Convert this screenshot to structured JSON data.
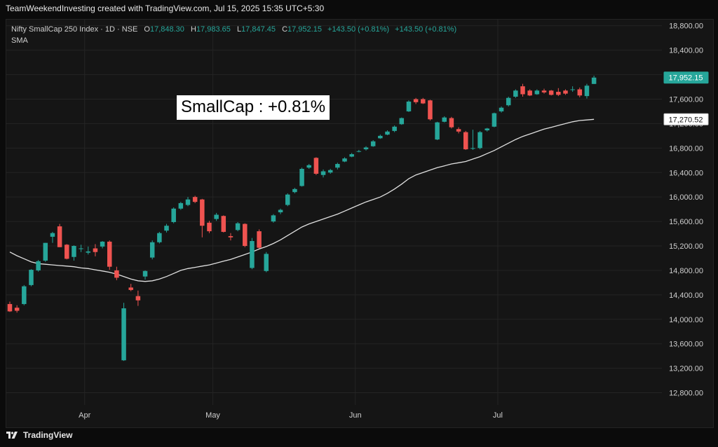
{
  "header": {
    "credit": "TeamWeekendInvesting created with TradingView.com, Jul 15, 2025 15:35 UTC+5:30"
  },
  "legend": {
    "symbol": "Nifty SmallCap 250 Index · 1D · NSE",
    "open_label": "O",
    "open": "17,848.30",
    "high_label": "H",
    "high": "17,983.65",
    "low_label": "L",
    "low": "17,847.45",
    "close_label": "C",
    "close": "17,952.15",
    "change": "+143.50 (+0.81%)",
    "change2": "+143.50 (+0.81%)",
    "indicator": "SMA"
  },
  "annotation": "SmallCap : +0.81%",
  "footer": {
    "brand": "TradingView"
  },
  "colors": {
    "up": "#26a69a",
    "down": "#ef5350",
    "sma": "#e0e0e0",
    "grid": "#242424",
    "axis_text": "#cfcfcf"
  },
  "chart_data": {
    "type": "candlestick",
    "title": "Nifty SmallCap 250 Index · 1D · NSE",
    "ylim": [
      12600,
      18900
    ],
    "y_ticks": [
      "12,800.00",
      "13,200.00",
      "13,600.00",
      "14,000.00",
      "14,400.00",
      "14,800.00",
      "15,200.00",
      "15,600.00",
      "16,000.00",
      "16,400.00",
      "16,800.00",
      "17,200.00",
      "17,600.00",
      "18,000.00",
      "18,400.00",
      "18,800.00"
    ],
    "y_tick_values": [
      12800,
      13200,
      13600,
      14000,
      14400,
      14800,
      15200,
      15600,
      16000,
      16400,
      16800,
      17200,
      17600,
      18000,
      18400,
      18800
    ],
    "x_ticks": [
      {
        "label": "Apr",
        "index": 10.5
      },
      {
        "label": "May",
        "index": 28.5
      },
      {
        "label": "Jun",
        "index": 48.5
      },
      {
        "label": "Jul",
        "index": 68.5
      }
    ],
    "last_price_label": "17,952.15",
    "sma_price_label": "17,270.52",
    "last_price": 17952.15,
    "sma_price": 17270.52,
    "candles": [
      [
        14250,
        14290,
        14120,
        14130
      ],
      [
        14190,
        14230,
        14110,
        14140
      ],
      [
        14250,
        14560,
        14230,
        14540
      ],
      [
        14560,
        14820,
        14540,
        14810
      ],
      [
        14800,
        14970,
        14780,
        14950
      ],
      [
        14960,
        15250,
        14940,
        15250
      ],
      [
        15350,
        15430,
        15250,
        15410
      ],
      [
        15520,
        15560,
        15180,
        15180
      ],
      [
        15220,
        15230,
        14980,
        14990
      ],
      [
        15020,
        15210,
        14960,
        15200
      ],
      [
        15150,
        15220,
        15100,
        15160
      ],
      [
        15090,
        15190,
        15060,
        15110
      ],
      [
        15160,
        15230,
        15030,
        15100
      ],
      [
        15190,
        15280,
        15160,
        15270
      ],
      [
        15270,
        15290,
        14810,
        14860
      ],
      [
        14800,
        14860,
        14640,
        14680
      ],
      [
        13330,
        14270,
        13320,
        14180
      ],
      [
        14520,
        14580,
        14460,
        14480
      ],
      [
        14380,
        14470,
        14220,
        14310
      ],
      [
        14700,
        14800,
        14650,
        14790
      ],
      [
        15010,
        15290,
        14980,
        15260
      ],
      [
        15260,
        15430,
        15240,
        15410
      ],
      [
        15450,
        15560,
        15420,
        15530
      ],
      [
        15590,
        15830,
        15570,
        15810
      ],
      [
        15810,
        15920,
        15790,
        15900
      ],
      [
        15870,
        16000,
        15850,
        15960
      ],
      [
        16000,
        16020,
        15900,
        15920
      ],
      [
        15960,
        15970,
        15340,
        15530
      ],
      [
        15580,
        15610,
        15410,
        15440
      ],
      [
        15640,
        15740,
        15610,
        15710
      ],
      [
        15690,
        15700,
        15420,
        15430
      ],
      [
        15360,
        15410,
        15290,
        15340
      ],
      [
        15460,
        15590,
        15440,
        15570
      ],
      [
        15560,
        15570,
        15180,
        15200
      ],
      [
        14840,
        15330,
        14820,
        15280
      ],
      [
        15440,
        15470,
        15160,
        15170
      ],
      [
        14790,
        15100,
        14770,
        15070
      ],
      [
        15600,
        15720,
        15580,
        15700
      ],
      [
        15750,
        15810,
        15720,
        15790
      ],
      [
        15870,
        16060,
        15850,
        16040
      ],
      [
        16080,
        16150,
        16060,
        16130
      ],
      [
        16180,
        16480,
        16170,
        16460
      ],
      [
        16480,
        16540,
        16460,
        16520
      ],
      [
        16640,
        16650,
        16360,
        16380
      ],
      [
        16360,
        16450,
        16320,
        16420
      ],
      [
        16400,
        16460,
        16380,
        16440
      ],
      [
        16480,
        16560,
        16450,
        16540
      ],
      [
        16580,
        16650,
        16570,
        16630
      ],
      [
        16660,
        16720,
        16650,
        16700
      ],
      [
        16740,
        16770,
        16730,
        16750
      ],
      [
        16780,
        16830,
        16760,
        16810
      ],
      [
        16830,
        16930,
        16820,
        16910
      ],
      [
        16960,
        17020,
        16950,
        17000
      ],
      [
        17020,
        17090,
        17010,
        17070
      ],
      [
        17080,
        17170,
        17060,
        17150
      ],
      [
        17190,
        17300,
        17180,
        17290
      ],
      [
        17400,
        17580,
        17390,
        17560
      ],
      [
        17600,
        17620,
        17520,
        17550
      ],
      [
        17600,
        17620,
        17520,
        17530
      ],
      [
        17580,
        17590,
        17250,
        17270
      ],
      [
        16940,
        17230,
        16930,
        17220
      ],
      [
        17230,
        17320,
        17220,
        17300
      ],
      [
        17290,
        17310,
        17120,
        17140
      ],
      [
        17110,
        17140,
        17040,
        17070
      ],
      [
        17060,
        17080,
        16770,
        16780
      ],
      [
        16800,
        17100,
        16770,
        16800
      ],
      [
        16800,
        17080,
        16780,
        17060
      ],
      [
        17090,
        17130,
        17070,
        17120
      ],
      [
        17150,
        17380,
        17140,
        17370
      ],
      [
        17400,
        17480,
        17380,
        17460
      ],
      [
        17500,
        17640,
        17480,
        17620
      ],
      [
        17640,
        17760,
        17620,
        17740
      ],
      [
        17810,
        17850,
        17640,
        17680
      ],
      [
        17740,
        17760,
        17650,
        17660
      ],
      [
        17680,
        17760,
        17670,
        17740
      ],
      [
        17740,
        17770,
        17690,
        17710
      ],
      [
        17740,
        17750,
        17660,
        17670
      ],
      [
        17720,
        17780,
        17650,
        17670
      ],
      [
        17740,
        17760,
        17670,
        17690
      ],
      [
        17750,
        17810,
        17720,
        17760
      ],
      [
        17760,
        17790,
        17630,
        17660
      ],
      [
        17650,
        17850,
        17610,
        17820
      ],
      [
        17848.3,
        17983.65,
        17847.45,
        17952.15
      ]
    ],
    "sma": [
      15100,
      15040,
      14990,
      14940,
      14910,
      14900,
      14890,
      14880,
      14870,
      14860,
      14840,
      14830,
      14810,
      14790,
      14770,
      14740,
      14700,
      14660,
      14630,
      14620,
      14630,
      14660,
      14700,
      14750,
      14800,
      14830,
      14850,
      14870,
      14890,
      14920,
      14950,
      14980,
      15020,
      15060,
      15100,
      15150,
      15190,
      15240,
      15300,
      15370,
      15440,
      15510,
      15560,
      15600,
      15640,
      15680,
      15720,
      15770,
      15820,
      15870,
      15920,
      15960,
      16000,
      16060,
      16130,
      16210,
      16300,
      16360,
      16400,
      16440,
      16480,
      16510,
      16540,
      16560,
      16580,
      16620,
      16660,
      16710,
      16760,
      16820,
      16880,
      16940,
      16990,
      17030,
      17070,
      17110,
      17140,
      17170,
      17200,
      17230,
      17250,
      17260,
      17270.52
    ]
  }
}
